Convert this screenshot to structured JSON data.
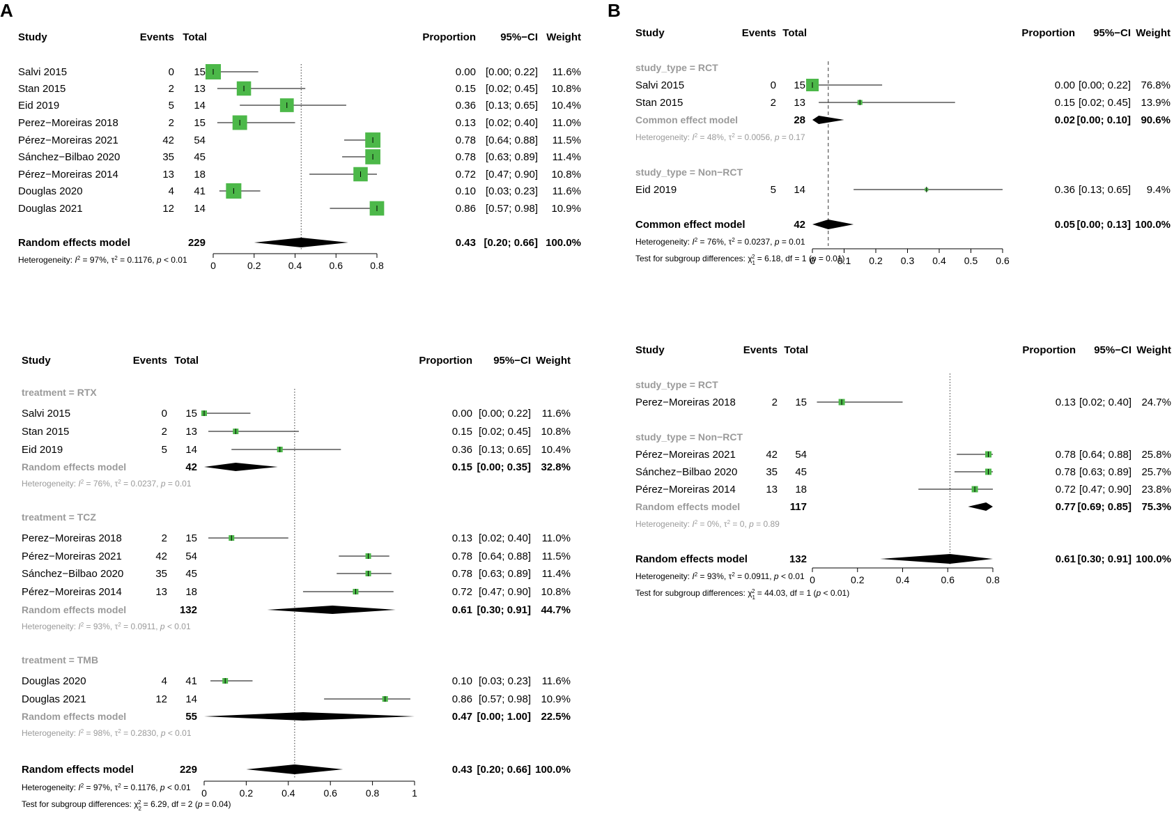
{
  "panel_labels": [
    "A",
    "B"
  ],
  "headers": [
    "Study",
    "Events",
    "Total",
    "Proportion",
    "95%−CI",
    "Weight"
  ],
  "chart_data": [
    {
      "id": "A1",
      "type": "forest",
      "axis": {
        "range": [
          0,
          0.8
        ],
        "ticks": [
          0,
          0.2,
          0.4,
          0.6,
          0.8
        ],
        "ref": 0.43,
        "ref_style": "dotted"
      },
      "groups": [
        {
          "label": null,
          "rows": [
            {
              "study": "Salvi 2015",
              "events": "0",
              "total": "15",
              "est": 0.0,
              "lo": 0.0,
              "hi": 0.22,
              "prop": "0.00",
              "ci": "[0.00; 0.22]",
              "weight": "11.6%",
              "w": 11.6
            },
            {
              "study": "Stan 2015",
              "events": "2",
              "total": "13",
              "est": 0.15,
              "lo": 0.02,
              "hi": 0.45,
              "prop": "0.15",
              "ci": "[0.02; 0.45]",
              "weight": "10.8%",
              "w": 10.8
            },
            {
              "study": "Eid 2019",
              "events": "5",
              "total": "14",
              "est": 0.36,
              "lo": 0.13,
              "hi": 0.65,
              "prop": "0.36",
              "ci": "[0.13; 0.65]",
              "weight": "10.4%",
              "w": 10.4
            },
            {
              "study": "Perez−Moreiras 2018",
              "events": "2",
              "total": "15",
              "est": 0.13,
              "lo": 0.02,
              "hi": 0.4,
              "prop": "0.13",
              "ci": "[0.02; 0.40]",
              "weight": "11.0%",
              "w": 11.0
            },
            {
              "study": "Pérez−Moreiras 2021",
              "events": "42",
              "total": "54",
              "est": 0.78,
              "lo": 0.64,
              "hi": 0.88,
              "prop": "0.78",
              "ci": "[0.64; 0.88]",
              "weight": "11.5%",
              "w": 11.5
            },
            {
              "study": "Sánchez−Bilbao 2020",
              "events": "35",
              "total": "45",
              "est": 0.78,
              "lo": 0.63,
              "hi": 0.89,
              "prop": "0.78",
              "ci": "[0.63; 0.89]",
              "weight": "11.4%",
              "w": 11.4
            },
            {
              "study": "Pérez−Moreiras 2014",
              "events": "13",
              "total": "18",
              "est": 0.72,
              "lo": 0.47,
              "hi": 0.9,
              "prop": "0.72",
              "ci": "[0.47; 0.90]",
              "weight": "10.8%",
              "w": 10.8
            },
            {
              "study": "Douglas 2020",
              "events": "4",
              "total": "41",
              "est": 0.1,
              "lo": 0.03,
              "hi": 0.23,
              "prop": "0.10",
              "ci": "[0.03; 0.23]",
              "weight": "11.6%",
              "w": 11.6
            },
            {
              "study": "Douglas 2021",
              "events": "12",
              "total": "14",
              "est": 0.86,
              "lo": 0.57,
              "hi": 0.98,
              "prop": "0.86",
              "ci": "[0.57; 0.98]",
              "weight": "10.9%",
              "w": 10.9
            }
          ]
        }
      ],
      "overall": {
        "label": "Random effects model",
        "total": "229",
        "est": 0.43,
        "lo": 0.2,
        "hi": 0.66,
        "prop": "0.43",
        "ci": "[0.20; 0.66]",
        "weight": "100.0%"
      },
      "het": {
        "pre": "Heterogeneity: ",
        "I": "I",
        "sup": "2",
        "mid": " = 97%, ",
        "tau": "τ",
        "rest": " = 0.1176, ",
        "p": "p",
        "pval": " < 0.01"
      }
    },
    {
      "id": "A2",
      "type": "forest",
      "axis": {
        "range": [
          0,
          1
        ],
        "ticks": [
          0,
          0.2,
          0.4,
          0.6,
          0.8,
          1
        ],
        "ref": 0.43,
        "ref_style": "dotted"
      },
      "groups": [
        {
          "label": "treatment = RTX",
          "rows": [
            {
              "study": "Salvi 2015",
              "events": "0",
              "total": "15",
              "est": 0.0,
              "lo": 0.0,
              "hi": 0.22,
              "prop": "0.00",
              "ci": "[0.00; 0.22]",
              "weight": "11.6%",
              "w": 11.6
            },
            {
              "study": "Stan 2015",
              "events": "2",
              "total": "13",
              "est": 0.15,
              "lo": 0.02,
              "hi": 0.45,
              "prop": "0.15",
              "ci": "[0.02; 0.45]",
              "weight": "10.8%",
              "w": 10.8
            },
            {
              "study": "Eid 2019",
              "events": "5",
              "total": "14",
              "est": 0.36,
              "lo": 0.13,
              "hi": 0.65,
              "prop": "0.36",
              "ci": "[0.13; 0.65]",
              "weight": "10.4%",
              "w": 10.4
            }
          ],
          "summary": {
            "label": "Random effects model",
            "total": "42",
            "est": 0.15,
            "lo": 0.0,
            "hi": 0.35,
            "prop": "0.15",
            "ci": "[0.00; 0.35]",
            "weight": "32.8%"
          },
          "het": {
            "pre": "Heterogeneity: ",
            "I": "I",
            "sup": "2",
            "mid": " = 76%, ",
            "tau": "τ",
            "rest": " = 0.0237, ",
            "p": "p",
            "pval": " = 0.01"
          }
        },
        {
          "label": "treatment = TCZ",
          "rows": [
            {
              "study": "Perez−Moreiras 2018",
              "events": "2",
              "total": "15",
              "est": 0.13,
              "lo": 0.02,
              "hi": 0.4,
              "prop": "0.13",
              "ci": "[0.02; 0.40]",
              "weight": "11.0%",
              "w": 11.0
            },
            {
              "study": "Pérez−Moreiras 2021",
              "events": "42",
              "total": "54",
              "est": 0.78,
              "lo": 0.64,
              "hi": 0.88,
              "prop": "0.78",
              "ci": "[0.64; 0.88]",
              "weight": "11.5%",
              "w": 11.5
            },
            {
              "study": "Sánchez−Bilbao 2020",
              "events": "35",
              "total": "45",
              "est": 0.78,
              "lo": 0.63,
              "hi": 0.89,
              "prop": "0.78",
              "ci": "[0.63; 0.89]",
              "weight": "11.4%",
              "w": 11.4
            },
            {
              "study": "Pérez−Moreiras 2014",
              "events": "13",
              "total": "18",
              "est": 0.72,
              "lo": 0.47,
              "hi": 0.9,
              "prop": "0.72",
              "ci": "[0.47; 0.90]",
              "weight": "10.8%",
              "w": 10.8
            }
          ],
          "summary": {
            "label": "Random effects model",
            "total": "132",
            "est": 0.61,
            "lo": 0.3,
            "hi": 0.91,
            "prop": "0.61",
            "ci": "[0.30; 0.91]",
            "weight": "44.7%"
          },
          "het": {
            "pre": "Heterogeneity: ",
            "I": "I",
            "sup": "2",
            "mid": " = 93%, ",
            "tau": "τ",
            "rest": " = 0.0911, ",
            "p": "p",
            "pval": " < 0.01"
          }
        },
        {
          "label": "treatment = TMB",
          "rows": [
            {
              "study": "Douglas 2020",
              "events": "4",
              "total": "41",
              "est": 0.1,
              "lo": 0.03,
              "hi": 0.23,
              "prop": "0.10",
              "ci": "[0.03; 0.23]",
              "weight": "11.6%",
              "w": 11.6
            },
            {
              "study": "Douglas 2021",
              "events": "12",
              "total": "14",
              "est": 0.86,
              "lo": 0.57,
              "hi": 0.98,
              "prop": "0.86",
              "ci": "[0.57; 0.98]",
              "weight": "10.9%",
              "w": 10.9
            }
          ],
          "summary": {
            "label": "Random effects model",
            "total": "55",
            "est": 0.47,
            "lo": 0.0,
            "hi": 1.0,
            "prop": "0.47",
            "ci": "[0.00; 1.00]",
            "weight": "22.5%"
          },
          "het": {
            "pre": "Heterogeneity: ",
            "I": "I",
            "sup": "2",
            "mid": " = 98%, ",
            "tau": "τ",
            "rest": " = 0.2830, ",
            "p": "p",
            "pval": " < 0.01"
          }
        }
      ],
      "overall": {
        "label": "Random effects model",
        "total": "229",
        "est": 0.43,
        "lo": 0.2,
        "hi": 0.66,
        "prop": "0.43",
        "ci": "[0.20; 0.66]",
        "weight": "100.0%"
      },
      "het": {
        "pre": "Heterogeneity: ",
        "I": "I",
        "sup": "2",
        "mid": " = 97%, ",
        "tau": "τ",
        "rest": " = 0.1176, ",
        "p": "p",
        "pval": " < 0.01"
      },
      "subgroup_test": {
        "pre": "Test for subgroup differences: ",
        "chi": "χ",
        "sup": "2",
        "sub": "2",
        "mid": " = 6.29, df = 2 (",
        "p": "p",
        "pval": " = 0.04)"
      }
    },
    {
      "id": "B1",
      "type": "forest",
      "axis": {
        "range": [
          0,
          0.6
        ],
        "ticks": [
          0,
          0.1,
          0.2,
          0.3,
          0.4,
          0.5,
          0.6
        ],
        "ref": 0.05,
        "ref_style": "dashed"
      },
      "groups": [
        {
          "label": "study_type = RCT",
          "rows": [
            {
              "study": "Salvi 2015",
              "events": "0",
              "total": "15",
              "est": 0.0,
              "lo": 0.0,
              "hi": 0.22,
              "prop": "0.00",
              "ci": "[0.00; 0.22]",
              "weight": "76.8%",
              "w": 76.8
            },
            {
              "study": "Stan 2015",
              "events": "2",
              "total": "13",
              "est": 0.15,
              "lo": 0.02,
              "hi": 0.45,
              "prop": "0.15",
              "ci": "[0.02; 0.45]",
              "weight": "13.9%",
              "w": 13.9
            }
          ],
          "summary": {
            "label": "Common effect model",
            "total": "28",
            "est": 0.02,
            "lo": 0.0,
            "hi": 0.1,
            "prop": "0.02",
            "ci": "[0.00; 0.10]",
            "weight": "90.6%"
          },
          "het": {
            "pre": "Heterogeneity: ",
            "I": "I",
            "sup": "2",
            "mid": " = 48%, ",
            "tau": "τ",
            "rest": " = 0.0056, ",
            "p": "p",
            "pval": " = 0.17"
          }
        },
        {
          "label": "study_type = Non−RCT",
          "rows": [
            {
              "study": "Eid 2019",
              "events": "5",
              "total": "14",
              "est": 0.36,
              "lo": 0.13,
              "hi": 0.65,
              "prop": "0.36",
              "ci": "[0.13; 0.65]",
              "weight": "9.4%",
              "w": 9.4
            }
          ]
        }
      ],
      "overall": {
        "label": "Common effect model",
        "total": "42",
        "est": 0.05,
        "lo": 0.0,
        "hi": 0.13,
        "prop": "0.05",
        "ci": "[0.00; 0.13]",
        "weight": "100.0%"
      },
      "het": {
        "pre": "Heterogeneity: ",
        "I": "I",
        "sup": "2",
        "mid": " = 76%, ",
        "tau": "τ",
        "rest": " = 0.0237, ",
        "p": "p",
        "pval": " = 0.01"
      },
      "subgroup_test": {
        "pre": "Test for subgroup differences: ",
        "chi": "χ",
        "sup": "2",
        "sub": "1",
        "mid": " = 6.18, df = 1 (",
        "p": "p",
        "pval": " = 0.01)"
      }
    },
    {
      "id": "B2",
      "type": "forest",
      "axis": {
        "range": [
          0,
          0.8
        ],
        "ticks": [
          0,
          0.2,
          0.4,
          0.6,
          0.8
        ],
        "ref": 0.61,
        "ref_style": "dotted"
      },
      "groups": [
        {
          "label": "study_type = RCT",
          "rows": [
            {
              "study": "Perez−Moreiras 2018",
              "events": "2",
              "total": "15",
              "est": 0.13,
              "lo": 0.02,
              "hi": 0.4,
              "prop": "0.13",
              "ci": "[0.02; 0.40]",
              "weight": "24.7%",
              "w": 24.7
            }
          ]
        },
        {
          "label": "study_type = Non−RCT",
          "rows": [
            {
              "study": "Pérez−Moreiras 2021",
              "events": "42",
              "total": "54",
              "est": 0.78,
              "lo": 0.64,
              "hi": 0.88,
              "prop": "0.78",
              "ci": "[0.64; 0.88]",
              "weight": "25.8%",
              "w": 25.8
            },
            {
              "study": "Sánchez−Bilbao 2020",
              "events": "35",
              "total": "45",
              "est": 0.78,
              "lo": 0.63,
              "hi": 0.89,
              "prop": "0.78",
              "ci": "[0.63; 0.89]",
              "weight": "25.7%",
              "w": 25.7
            },
            {
              "study": "Pérez−Moreiras 2014",
              "events": "13",
              "total": "18",
              "est": 0.72,
              "lo": 0.47,
              "hi": 0.9,
              "prop": "0.72",
              "ci": "[0.47; 0.90]",
              "weight": "23.8%",
              "w": 23.8
            }
          ],
          "summary": {
            "label": "Random effects model",
            "total": "117",
            "est": 0.77,
            "lo": 0.69,
            "hi": 0.85,
            "prop": "0.77",
            "ci": "[0.69; 0.85]",
            "weight": "75.3%"
          },
          "het": {
            "pre": "Heterogeneity: ",
            "I": "I",
            "sup": "2",
            "mid": " = 0%, ",
            "tau": "τ",
            "rest": " = 0, ",
            "p": "p",
            "pval": " = 0.89"
          }
        }
      ],
      "overall": {
        "label": "Random effects model",
        "total": "132",
        "est": 0.61,
        "lo": 0.3,
        "hi": 0.91,
        "prop": "0.61",
        "ci": "[0.30; 0.91]",
        "weight": "100.0%"
      },
      "het": {
        "pre": "Heterogeneity: ",
        "I": "I",
        "sup": "2",
        "mid": " = 93%, ",
        "tau": "τ",
        "rest": " = 0.0911, ",
        "p": "p",
        "pval": " < 0.01"
      },
      "subgroup_test": {
        "pre": "Test for subgroup differences: ",
        "chi": "χ",
        "sup": "2",
        "sub": "1",
        "mid": " = 44.03, df = 1 (",
        "p": "p",
        "pval": " < 0.01)"
      }
    }
  ],
  "colors": {
    "square": "#4cb849",
    "square_edge": "#3a9a38",
    "diamond": "#000000",
    "subgroup_text": "#9a9a9a"
  }
}
